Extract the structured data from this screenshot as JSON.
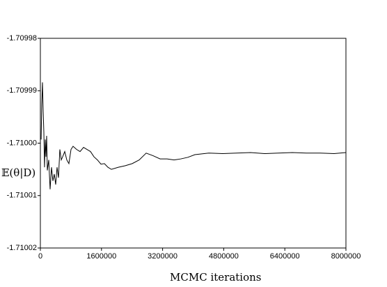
{
  "chart_data": {
    "type": "line",
    "xlabel": "MCMC iterations",
    "ylabel": "𝔼(θ|D)",
    "xlim": [
      0,
      8000000
    ],
    "xticks": [
      0,
      1600000,
      3200000,
      4800000,
      6400000,
      8000000
    ],
    "ylim": [
      -1.71002,
      -1.70998
    ],
    "yticks": [
      -1.71002,
      -1.71001,
      {
        "value": -1.71,
        "label": "-1.71000"
      },
      -1.70999,
      -1.70998
    ],
    "grid": false,
    "series": [
      {
        "color": "#000000",
        "x": [
          20000,
          36000,
          55000,
          73000,
          91000,
          109000,
          128000,
          146000,
          164000,
          182000,
          219000,
          255000,
          292000,
          328000,
          364000,
          401000,
          437000,
          474000,
          510000,
          547000,
          583000,
          638000,
          692000,
          747000,
          802000,
          856000,
          948000,
          1039000,
          1130000,
          1221000,
          1312000,
          1403000,
          1494000,
          1585000,
          1677000,
          1768000,
          1859000,
          2041000,
          2223000,
          2405000,
          2588000,
          2770000,
          2952000,
          3134000,
          3317000,
          3499000,
          3681000,
          3863000,
          4046000,
          4410000,
          4774000,
          5139000,
          5503000,
          5868000,
          6232000,
          6597000,
          6961000,
          7326000,
          7690000,
          8000000
        ],
        "values": [
          -1.7099993,
          -1.7099926,
          -1.7099884,
          -1.7099939,
          -1.7099979,
          -1.7100046,
          -1.7099993,
          -1.7100026,
          -1.7099986,
          -1.7100052,
          -1.7100032,
          -1.7100088,
          -1.7100046,
          -1.7100072,
          -1.7100059,
          -1.7100079,
          -1.7100046,
          -1.7100066,
          -1.7100012,
          -1.7100032,
          -1.7100026,
          -1.7100016,
          -1.7100032,
          -1.7100039,
          -1.7100012,
          -1.7100006,
          -1.7100012,
          -1.7100016,
          -1.7100008,
          -1.7100012,
          -1.7100016,
          -1.7100026,
          -1.7100032,
          -1.710004,
          -1.7100039,
          -1.7100046,
          -1.710005,
          -1.7100046,
          -1.7100043,
          -1.7100039,
          -1.7100032,
          -1.7100019,
          -1.7100024,
          -1.710003,
          -1.710003,
          -1.7100032,
          -1.710003,
          -1.7100027,
          -1.7100022,
          -1.7100019,
          -1.710002,
          -1.7100019,
          -1.7100018,
          -1.710002,
          -1.7100019,
          -1.7100018,
          -1.7100019,
          -1.7100019,
          -1.710002,
          -1.7100018
        ]
      }
    ]
  }
}
